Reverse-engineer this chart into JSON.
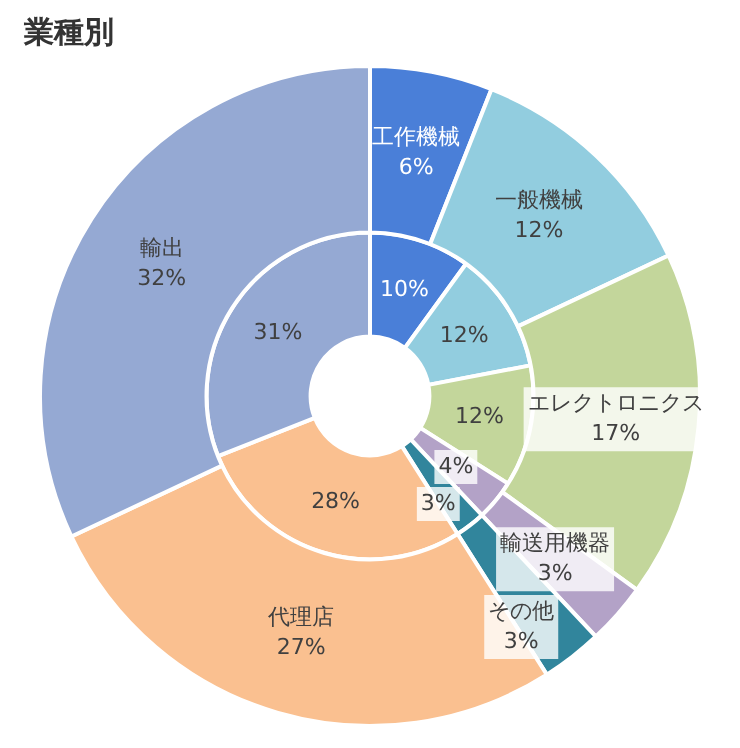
{
  "chart_data": {
    "type": "donut",
    "title": "業種別",
    "categories": [
      "工作機械",
      "一般機械",
      "エレクトロニクス",
      "輸送用機器",
      "その他",
      "代理店",
      "輸出"
    ],
    "colors": [
      "#4a7fd8",
      "#92cddf",
      "#c3d69b",
      "#b3a2c7",
      "#31859c",
      "#fac090",
      "#95a9d3"
    ],
    "series": [
      {
        "values": [
          6,
          12,
          17,
          3,
          3,
          27,
          32
        ],
        "value_labels": [
          "6%",
          "12%",
          "17%",
          "3%",
          "3%",
          "27%",
          "32%"
        ]
      },
      {
        "values": [
          10,
          12,
          12,
          4,
          3,
          28,
          31
        ],
        "value_labels": [
          "10%",
          "12%",
          "12%",
          "4%",
          "3%",
          "28%",
          "31%"
        ]
      }
    ],
    "legend": false
  }
}
